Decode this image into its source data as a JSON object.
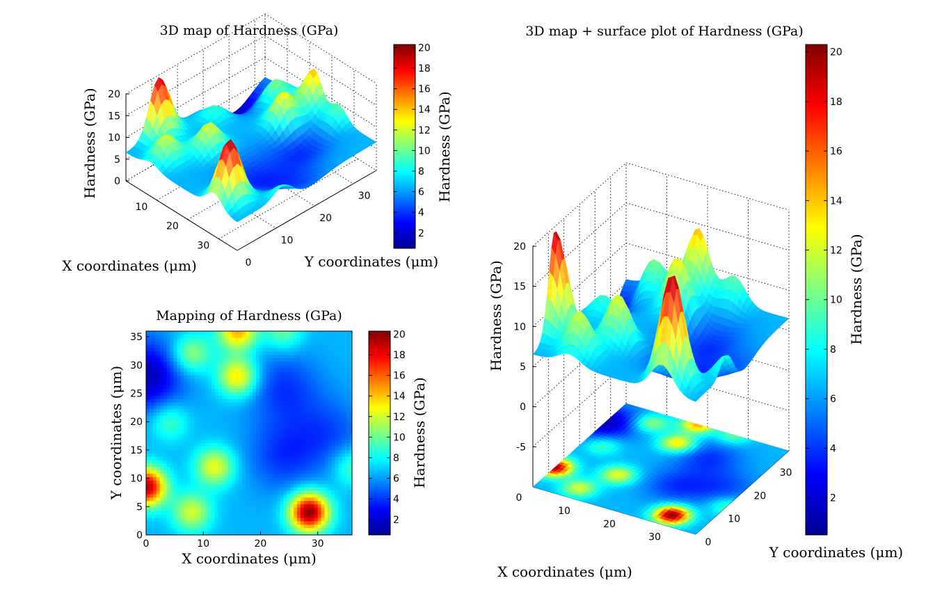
{
  "chart_data": [
    {
      "type": "surface",
      "title": "3D map of Hardness (GPa)",
      "xlabel": "X coordinates (μm)",
      "ylabel": "Y coordinates (μm)",
      "zlabel": "Hardness (GPa)",
      "xticks": [
        "10",
        "20",
        "30"
      ],
      "yticks": [
        "0",
        "10",
        "20",
        "30"
      ],
      "zticks": [
        "0",
        "5",
        "10",
        "15",
        "20"
      ],
      "xlim": [
        0,
        36
      ],
      "ylim": [
        0,
        36
      ],
      "zlim": [
        0,
        20
      ],
      "colorbar": {
        "label": "Hardness (GPa)",
        "ticks": [
          "2",
          "4",
          "6",
          "8",
          "10",
          "12",
          "14",
          "16",
          "18",
          "20"
        ],
        "range": [
          0.5,
          20.3
        ]
      },
      "grid": true
    },
    {
      "type": "heatmap",
      "title": "Mapping of Hardness (GPa)",
      "xlabel": "X coordinates (μm)",
      "ylabel": "Y coordinates (μm)",
      "xticks": [
        "0",
        "10",
        "20",
        "30"
      ],
      "yticks": [
        "0",
        "5",
        "10",
        "15",
        "20",
        "25",
        "30",
        "35"
      ],
      "xlim": [
        0,
        36
      ],
      "ylim": [
        0,
        36
      ],
      "colorbar": {
        "label": "Hardness (GPa)",
        "ticks": [
          "2",
          "4",
          "6",
          "8",
          "10",
          "12",
          "14",
          "16",
          "18",
          "20"
        ],
        "range": [
          0.5,
          20.3
        ]
      },
      "baseline_gpa": 6.5,
      "peaks": [
        {
          "x": 28.5,
          "y": 4,
          "hardness": 20.3
        },
        {
          "x": 0,
          "y": 8.5,
          "hardness": 19.5
        },
        {
          "x": 16,
          "y": 36,
          "hardness": 14.5
        },
        {
          "x": 16,
          "y": 28,
          "hardness": 13.5
        },
        {
          "x": 12,
          "y": 12,
          "hardness": 12.5
        },
        {
          "x": 8,
          "y": 4,
          "hardness": 12
        },
        {
          "x": 8,
          "y": 32,
          "hardness": 11
        },
        {
          "x": 4,
          "y": 20,
          "hardness": 9.5
        },
        {
          "x": 36,
          "y": 12,
          "hardness": 9.5
        },
        {
          "x": 24,
          "y": 36,
          "hardness": 10
        },
        {
          "x": 0,
          "y": 28,
          "hardness": 1.5
        },
        {
          "x": 24,
          "y": 26,
          "hardness": 4
        },
        {
          "x": 24,
          "y": 14,
          "hardness": 4
        },
        {
          "x": 32,
          "y": 18,
          "hardness": 4.5
        }
      ]
    },
    {
      "type": "surface",
      "title": "3D map + surface plot of Hardness (GPa)",
      "xlabel": "X coordinates (μm)",
      "ylabel": "Y coordinates (μm)",
      "zlabel": "Hardness (GPa)",
      "xticks": [
        "0",
        "10",
        "20",
        "30"
      ],
      "yticks": [
        "0",
        "10",
        "20",
        "30"
      ],
      "zticks": [
        "-5",
        "0",
        "5",
        "10",
        "15",
        "20"
      ],
      "xlim": [
        0,
        36
      ],
      "ylim": [
        0,
        36
      ],
      "zlim": [
        -10,
        20
      ],
      "colorbar": {
        "label": "Hardness (GPa)",
        "ticks": [
          "2",
          "4",
          "6",
          "8",
          "10",
          "12",
          "14",
          "16",
          "18",
          "20"
        ],
        "range": [
          0.5,
          20.3
        ]
      },
      "grid": true
    }
  ]
}
